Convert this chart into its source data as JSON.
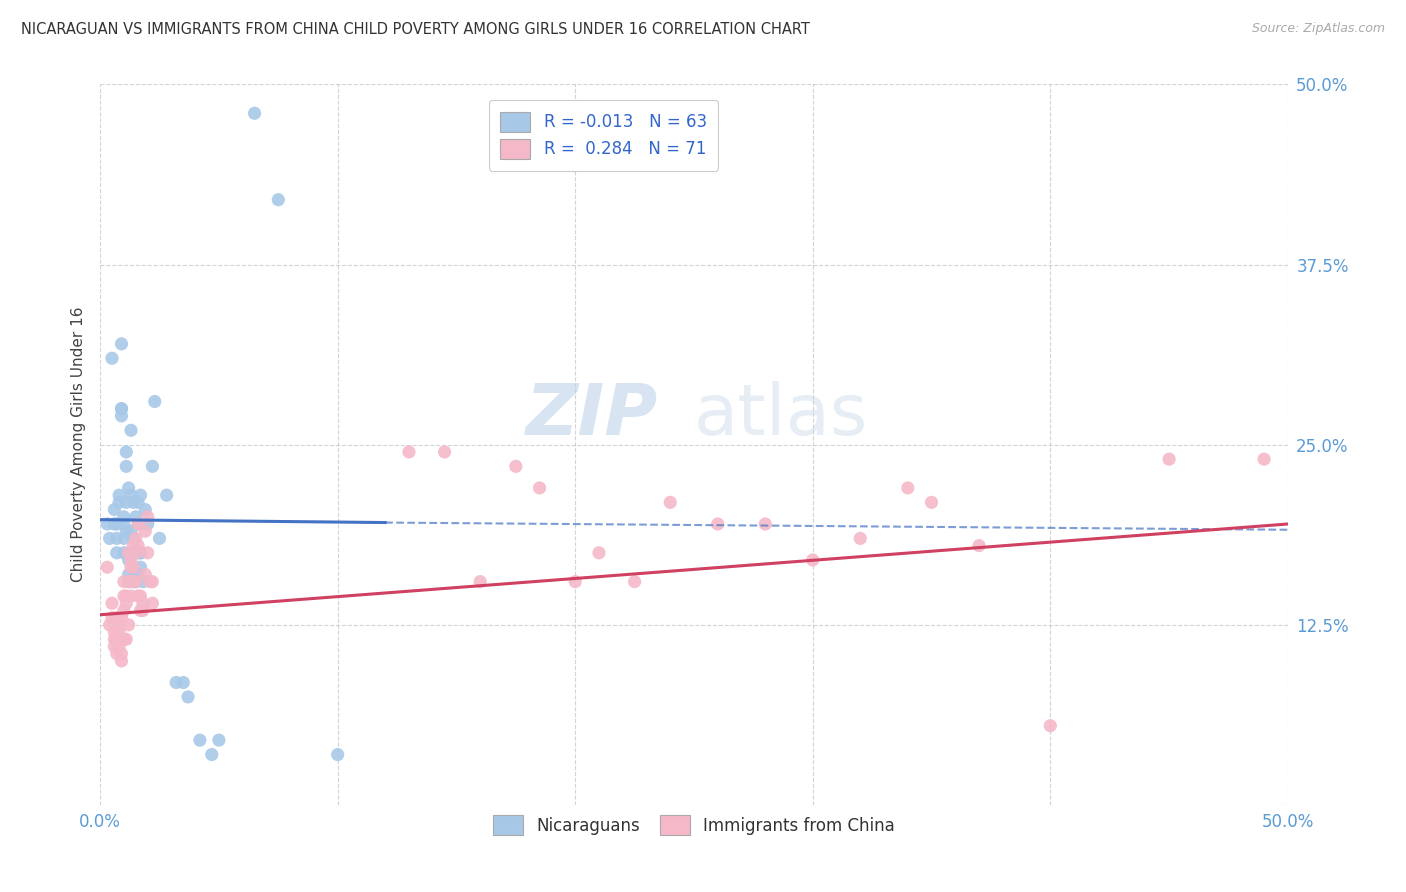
{
  "title": "NICARAGUAN VS IMMIGRANTS FROM CHINA CHILD POVERTY AMONG GIRLS UNDER 16 CORRELATION CHART",
  "source": "Source: ZipAtlas.com",
  "ylabel": "Child Poverty Among Girls Under 16",
  "xlim": [
    0.0,
    0.5
  ],
  "ylim": [
    0.0,
    0.5
  ],
  "xticks": [
    0.0,
    0.1,
    0.2,
    0.3,
    0.4,
    0.5
  ],
  "yticks": [
    0.0,
    0.125,
    0.25,
    0.375,
    0.5
  ],
  "xtick_labels": [
    "0.0%",
    "",
    "",
    "",
    "",
    "50.0%"
  ],
  "ytick_labels": [
    "",
    "12.5%",
    "25.0%",
    "37.5%",
    "50.0%"
  ],
  "legend_r_blue": "R = -0.013",
  "legend_n_blue": "N = 63",
  "legend_r_pink": "R =  0.284",
  "legend_n_pink": "N = 71",
  "blue_color": "#a8c8e8",
  "pink_color": "#f4b8c8",
  "blue_line_color": "#4472c4",
  "pink_line_color": "#d04060",
  "blue_line": [
    [
      0.0,
      0.198
    ],
    [
      0.12,
      0.196
    ]
  ],
  "blue_line_dashed": [
    [
      0.12,
      0.196
    ],
    [
      0.5,
      0.191
    ]
  ],
  "pink_line": [
    [
      0.0,
      0.132
    ],
    [
      0.5,
      0.195
    ]
  ],
  "blue_scatter": [
    [
      0.003,
      0.195
    ],
    [
      0.004,
      0.185
    ],
    [
      0.005,
      0.31
    ],
    [
      0.006,
      0.205
    ],
    [
      0.006,
      0.195
    ],
    [
      0.007,
      0.195
    ],
    [
      0.007,
      0.185
    ],
    [
      0.007,
      0.175
    ],
    [
      0.008,
      0.21
    ],
    [
      0.008,
      0.215
    ],
    [
      0.009,
      0.27
    ],
    [
      0.009,
      0.275
    ],
    [
      0.009,
      0.275
    ],
    [
      0.009,
      0.32
    ],
    [
      0.01,
      0.185
    ],
    [
      0.01,
      0.195
    ],
    [
      0.01,
      0.2
    ],
    [
      0.01,
      0.175
    ],
    [
      0.011,
      0.21
    ],
    [
      0.011,
      0.235
    ],
    [
      0.011,
      0.245
    ],
    [
      0.011,
      0.19
    ],
    [
      0.012,
      0.22
    ],
    [
      0.012,
      0.175
    ],
    [
      0.012,
      0.17
    ],
    [
      0.012,
      0.16
    ],
    [
      0.012,
      0.155
    ],
    [
      0.013,
      0.175
    ],
    [
      0.013,
      0.19
    ],
    [
      0.013,
      0.26
    ],
    [
      0.013,
      0.215
    ],
    [
      0.014,
      0.21
    ],
    [
      0.014,
      0.175
    ],
    [
      0.014,
      0.185
    ],
    [
      0.014,
      0.155
    ],
    [
      0.015,
      0.155
    ],
    [
      0.015,
      0.16
    ],
    [
      0.015,
      0.155
    ],
    [
      0.015,
      0.2
    ],
    [
      0.016,
      0.175
    ],
    [
      0.016,
      0.16
    ],
    [
      0.016,
      0.195
    ],
    [
      0.016,
      0.21
    ],
    [
      0.017,
      0.215
    ],
    [
      0.017,
      0.175
    ],
    [
      0.017,
      0.175
    ],
    [
      0.017,
      0.165
    ],
    [
      0.018,
      0.155
    ],
    [
      0.019,
      0.205
    ],
    [
      0.02,
      0.195
    ],
    [
      0.022,
      0.235
    ],
    [
      0.023,
      0.28
    ],
    [
      0.025,
      0.185
    ],
    [
      0.028,
      0.215
    ],
    [
      0.032,
      0.085
    ],
    [
      0.035,
      0.085
    ],
    [
      0.037,
      0.075
    ],
    [
      0.042,
      0.045
    ],
    [
      0.047,
      0.035
    ],
    [
      0.05,
      0.045
    ],
    [
      0.065,
      0.48
    ],
    [
      0.075,
      0.42
    ],
    [
      0.1,
      0.035
    ]
  ],
  "pink_scatter": [
    [
      0.003,
      0.165
    ],
    [
      0.004,
      0.125
    ],
    [
      0.005,
      0.14
    ],
    [
      0.005,
      0.13
    ],
    [
      0.006,
      0.115
    ],
    [
      0.006,
      0.11
    ],
    [
      0.006,
      0.12
    ],
    [
      0.007,
      0.13
    ],
    [
      0.007,
      0.105
    ],
    [
      0.007,
      0.115
    ],
    [
      0.008,
      0.11
    ],
    [
      0.008,
      0.12
    ],
    [
      0.008,
      0.125
    ],
    [
      0.008,
      0.115
    ],
    [
      0.009,
      0.1
    ],
    [
      0.009,
      0.105
    ],
    [
      0.009,
      0.115
    ],
    [
      0.009,
      0.13
    ],
    [
      0.01,
      0.145
    ],
    [
      0.01,
      0.135
    ],
    [
      0.01,
      0.115
    ],
    [
      0.01,
      0.155
    ],
    [
      0.011,
      0.14
    ],
    [
      0.011,
      0.145
    ],
    [
      0.011,
      0.115
    ],
    [
      0.012,
      0.125
    ],
    [
      0.012,
      0.175
    ],
    [
      0.012,
      0.155
    ],
    [
      0.013,
      0.165
    ],
    [
      0.013,
      0.155
    ],
    [
      0.013,
      0.17
    ],
    [
      0.013,
      0.145
    ],
    [
      0.014,
      0.155
    ],
    [
      0.014,
      0.18
    ],
    [
      0.014,
      0.165
    ],
    [
      0.015,
      0.155
    ],
    [
      0.015,
      0.175
    ],
    [
      0.015,
      0.185
    ],
    [
      0.016,
      0.18
    ],
    [
      0.016,
      0.195
    ],
    [
      0.016,
      0.145
    ],
    [
      0.017,
      0.135
    ],
    [
      0.017,
      0.145
    ],
    [
      0.018,
      0.135
    ],
    [
      0.018,
      0.14
    ],
    [
      0.019,
      0.16
    ],
    [
      0.019,
      0.19
    ],
    [
      0.02,
      0.2
    ],
    [
      0.02,
      0.175
    ],
    [
      0.021,
      0.155
    ],
    [
      0.022,
      0.14
    ],
    [
      0.022,
      0.155
    ],
    [
      0.13,
      0.245
    ],
    [
      0.145,
      0.245
    ],
    [
      0.16,
      0.155
    ],
    [
      0.175,
      0.235
    ],
    [
      0.185,
      0.22
    ],
    [
      0.2,
      0.155
    ],
    [
      0.21,
      0.175
    ],
    [
      0.225,
      0.155
    ],
    [
      0.24,
      0.21
    ],
    [
      0.26,
      0.195
    ],
    [
      0.28,
      0.195
    ],
    [
      0.3,
      0.17
    ],
    [
      0.32,
      0.185
    ],
    [
      0.34,
      0.22
    ],
    [
      0.35,
      0.21
    ],
    [
      0.37,
      0.18
    ],
    [
      0.4,
      0.055
    ],
    [
      0.45,
      0.24
    ],
    [
      0.49,
      0.24
    ]
  ],
  "watermark_zip": "ZIP",
  "watermark_atlas": "atlas",
  "background_color": "#ffffff",
  "grid_color": "#c8c8c8"
}
